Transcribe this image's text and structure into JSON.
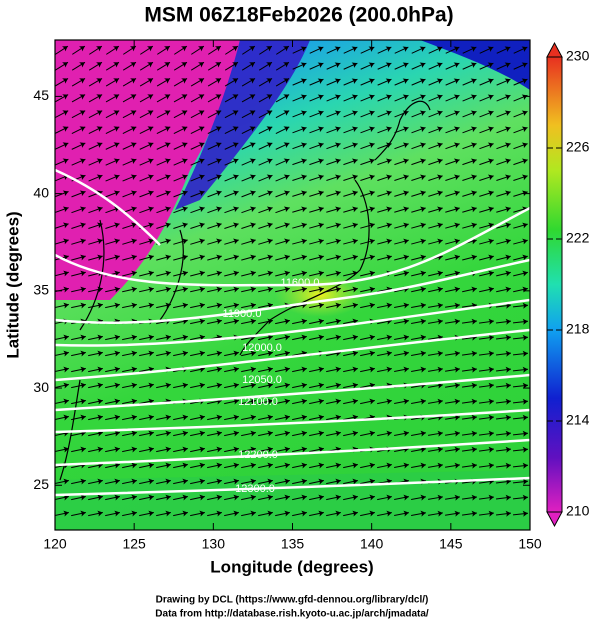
{
  "chart_data": {
    "type": "map",
    "title": "MSM 06Z18Feb2026 (200.0hPa)",
    "x_label": "Longitude (degrees)",
    "y_label": "Latitude  (degrees)",
    "xlim": [
      120,
      150
    ],
    "ylim": [
      22.7,
      47.9
    ],
    "xticks": [
      120,
      125,
      130,
      135,
      140,
      145,
      150
    ],
    "yticks": [
      25,
      30,
      35,
      40,
      45
    ],
    "colorbar": {
      "lim": [
        210,
        230
      ],
      "ticks": [
        210,
        214,
        218,
        222,
        226,
        230
      ]
    },
    "contour_labels": [
      "11600.0",
      "11900.0",
      "12000.0",
      "12050.0",
      "12100.0",
      "12200.0",
      "12300.0"
    ],
    "footer": [
      "Drawing by DCL (https://www.gfd-dennou.org/library/dcl/)",
      "Data from http://database.rish.kyoto-u.ac.jp/arch/jmadata/"
    ]
  }
}
